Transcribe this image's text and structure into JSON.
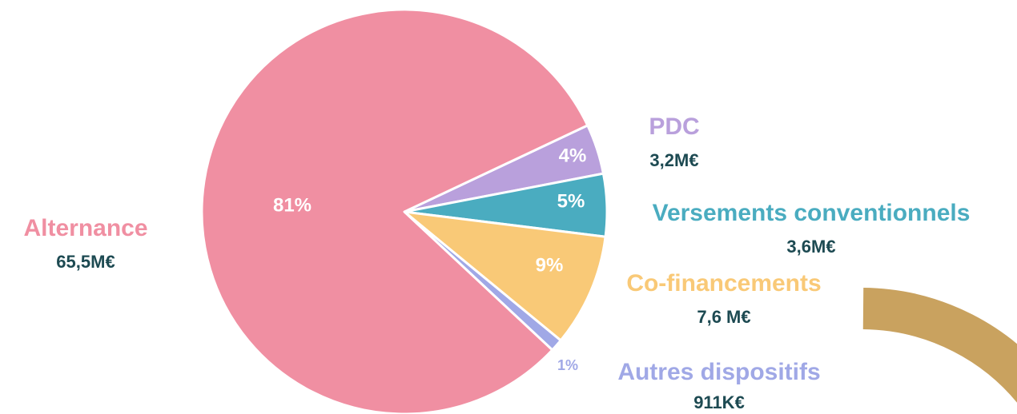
{
  "chart_data": {
    "type": "pie",
    "categories": [
      "PDC",
      "Versements conventionnels",
      "Co-financements",
      "Autres dispositifs",
      "Alternance"
    ],
    "values": [
      4,
      5,
      9,
      1,
      81
    ],
    "value_labels": [
      "4%",
      "5%",
      "9%",
      "1%",
      "81%"
    ],
    "amount_labels": [
      "3,2M€",
      "3,6M€",
      "7,6 M€",
      "911K€",
      "65,5M€"
    ],
    "colors": [
      "#b9a0dc",
      "#4aacc0",
      "#f9c977",
      "#a0a8e6",
      "#f08fa2"
    ],
    "amount_color": "#1d4a52"
  }
}
